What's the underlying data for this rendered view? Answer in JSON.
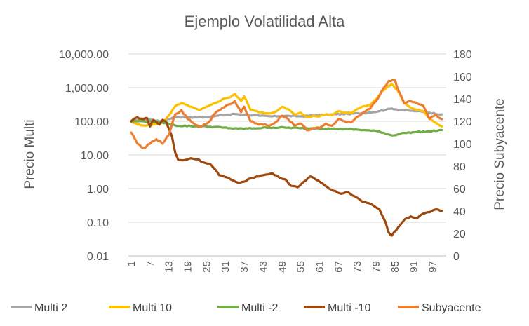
{
  "chart_data": {
    "type": "line",
    "title": "Ejemplo Volatilidad Alta",
    "ylabel": "Precio Multi",
    "y2label": "Precio Subyacente",
    "yscale": "log",
    "ylim": [
      0.01,
      10000
    ],
    "y_ticks": [
      "10,000.00",
      "1,000.00",
      "100.00",
      "10.00",
      "1.00",
      "0.10",
      "0.01"
    ],
    "y2lim": [
      0,
      180
    ],
    "y2_ticks": [
      "180",
      "160",
      "140",
      "120",
      "100",
      "80",
      "60",
      "40",
      "20",
      "0"
    ],
    "x_range": [
      1,
      100
    ],
    "x_ticks": [
      "1",
      "7",
      "13",
      "19",
      "25",
      "31",
      "37",
      "43",
      "49",
      "55",
      "61",
      "67",
      "73",
      "79",
      "85",
      "91",
      "97"
    ],
    "series": [
      {
        "name": "Multi 2",
        "color": "#a5a5a5",
        "axis": "left",
        "knots": [
          [
            1,
            100
          ],
          [
            5,
            120
          ],
          [
            10,
            100
          ],
          [
            12,
            110
          ],
          [
            15,
            135
          ],
          [
            20,
            130
          ],
          [
            25,
            135
          ],
          [
            30,
            150
          ],
          [
            34,
            165
          ],
          [
            38,
            155
          ],
          [
            42,
            145
          ],
          [
            46,
            140
          ],
          [
            50,
            145
          ],
          [
            55,
            140
          ],
          [
            60,
            150
          ],
          [
            65,
            160
          ],
          [
            70,
            165
          ],
          [
            75,
            175
          ],
          [
            80,
            200
          ],
          [
            84,
            240
          ],
          [
            88,
            210
          ],
          [
            92,
            200
          ],
          [
            96,
            180
          ],
          [
            100,
            160
          ]
        ]
      },
      {
        "name": "Multi 10",
        "color": "#ffc000",
        "axis": "left",
        "knots": [
          [
            1,
            100
          ],
          [
            3,
            80
          ],
          [
            6,
            75
          ],
          [
            9,
            82
          ],
          [
            11,
            90
          ],
          [
            13,
            150
          ],
          [
            15,
            280
          ],
          [
            17,
            350
          ],
          [
            19,
            300
          ],
          [
            21,
            250
          ],
          [
            23,
            220
          ],
          [
            26,
            300
          ],
          [
            28,
            350
          ],
          [
            30,
            450
          ],
          [
            32,
            500
          ],
          [
            34,
            650
          ],
          [
            36,
            400
          ],
          [
            37,
            550
          ],
          [
            39,
            220
          ],
          [
            41,
            200
          ],
          [
            43,
            180
          ],
          [
            45,
            170
          ],
          [
            47,
            190
          ],
          [
            49,
            270
          ],
          [
            51,
            230
          ],
          [
            53,
            160
          ],
          [
            55,
            180
          ],
          [
            57,
            130
          ],
          [
            59,
            145
          ],
          [
            61,
            140
          ],
          [
            63,
            160
          ],
          [
            65,
            150
          ],
          [
            67,
            200
          ],
          [
            69,
            180
          ],
          [
            71,
            175
          ],
          [
            73,
            230
          ],
          [
            75,
            280
          ],
          [
            77,
            300
          ],
          [
            79,
            450
          ],
          [
            81,
            800
          ],
          [
            84,
            1300
          ],
          [
            86,
            800
          ],
          [
            88,
            350
          ],
          [
            90,
            250
          ],
          [
            92,
            220
          ],
          [
            94,
            200
          ],
          [
            96,
            120
          ],
          [
            98,
            90
          ],
          [
            100,
            70
          ]
        ]
      },
      {
        "name": "Multi -2",
        "color": "#70ad47",
        "axis": "left",
        "knots": [
          [
            1,
            100
          ],
          [
            5,
            100
          ],
          [
            9,
            95
          ],
          [
            12,
            90
          ],
          [
            15,
            75
          ],
          [
            20,
            72
          ],
          [
            25,
            70
          ],
          [
            30,
            65
          ],
          [
            35,
            60
          ],
          [
            40,
            62
          ],
          [
            45,
            65
          ],
          [
            50,
            65
          ],
          [
            55,
            62
          ],
          [
            60,
            62
          ],
          [
            65,
            60
          ],
          [
            70,
            58
          ],
          [
            75,
            55
          ],
          [
            80,
            50
          ],
          [
            84,
            38
          ],
          [
            88,
            45
          ],
          [
            92,
            48
          ],
          [
            96,
            50
          ],
          [
            100,
            55
          ]
        ]
      },
      {
        "name": "Multi -10",
        "color": "#9e480e",
        "axis": "left",
        "knots": [
          [
            1,
            100
          ],
          [
            2,
            120
          ],
          [
            3,
            130
          ],
          [
            4,
            120
          ],
          [
            5,
            115
          ],
          [
            6,
            125
          ],
          [
            7,
            70
          ],
          [
            8,
            110
          ],
          [
            9,
            95
          ],
          [
            10,
            80
          ],
          [
            11,
            110
          ],
          [
            12,
            100
          ],
          [
            13,
            60
          ],
          [
            14,
            35
          ],
          [
            15,
            12
          ],
          [
            16,
            7
          ],
          [
            18,
            7
          ],
          [
            20,
            8
          ],
          [
            22,
            7.5
          ],
          [
            24,
            6
          ],
          [
            26,
            5.5
          ],
          [
            28,
            3.5
          ],
          [
            29,
            2.5
          ],
          [
            31,
            2.2
          ],
          [
            33,
            1.8
          ],
          [
            35,
            1.5
          ],
          [
            37,
            1.6
          ],
          [
            39,
            2
          ],
          [
            41,
            2.3
          ],
          [
            43,
            2.5
          ],
          [
            46,
            2.8
          ],
          [
            48,
            2.2
          ],
          [
            50,
            1.9
          ],
          [
            52,
            1.2
          ],
          [
            54,
            1.1
          ],
          [
            56,
            1.6
          ],
          [
            58,
            2.3
          ],
          [
            60,
            1.8
          ],
          [
            62,
            1.4
          ],
          [
            64,
            1
          ],
          [
            66,
            0.85
          ],
          [
            68,
            0.7
          ],
          [
            70,
            0.8
          ],
          [
            72,
            0.6
          ],
          [
            74,
            0.45
          ],
          [
            76,
            0.38
          ],
          [
            78,
            0.32
          ],
          [
            80,
            0.25
          ],
          [
            82,
            0.1
          ],
          [
            83,
            0.05
          ],
          [
            84,
            0.04
          ],
          [
            86,
            0.07
          ],
          [
            88,
            0.12
          ],
          [
            90,
            0.15
          ],
          [
            92,
            0.13
          ],
          [
            94,
            0.18
          ],
          [
            96,
            0.2
          ],
          [
            98,
            0.24
          ],
          [
            100,
            0.22
          ]
        ]
      },
      {
        "name": "Subyacente",
        "color": "#ed7d31",
        "axis": "right",
        "knots": [
          [
            1,
            110
          ],
          [
            3,
            100
          ],
          [
            5,
            96
          ],
          [
            7,
            100
          ],
          [
            9,
            104
          ],
          [
            11,
            100
          ],
          [
            13,
            108
          ],
          [
            15,
            126
          ],
          [
            17,
            130
          ],
          [
            19,
            122
          ],
          [
            21,
            118
          ],
          [
            23,
            115
          ],
          [
            26,
            120
          ],
          [
            28,
            128
          ],
          [
            30,
            132
          ],
          [
            32,
            135
          ],
          [
            34,
            138
          ],
          [
            36,
            128
          ],
          [
            37,
            133
          ],
          [
            39,
            120
          ],
          [
            41,
            118
          ],
          [
            43,
            117
          ],
          [
            45,
            116
          ],
          [
            47,
            119
          ],
          [
            49,
            125
          ],
          [
            51,
            122
          ],
          [
            53,
            116
          ],
          [
            55,
            118
          ],
          [
            57,
            112
          ],
          [
            59,
            114
          ],
          [
            61,
            114
          ],
          [
            63,
            118
          ],
          [
            65,
            116
          ],
          [
            67,
            122
          ],
          [
            69,
            120
          ],
          [
            71,
            119
          ],
          [
            73,
            124
          ],
          [
            75,
            128
          ],
          [
            77,
            131
          ],
          [
            79,
            138
          ],
          [
            81,
            148
          ],
          [
            83,
            156
          ],
          [
            85,
            157
          ],
          [
            86,
            148
          ],
          [
            88,
            136
          ],
          [
            90,
            138
          ],
          [
            92,
            136
          ],
          [
            94,
            134
          ],
          [
            96,
            122
          ],
          [
            98,
            126
          ],
          [
            100,
            122
          ]
        ]
      }
    ]
  }
}
